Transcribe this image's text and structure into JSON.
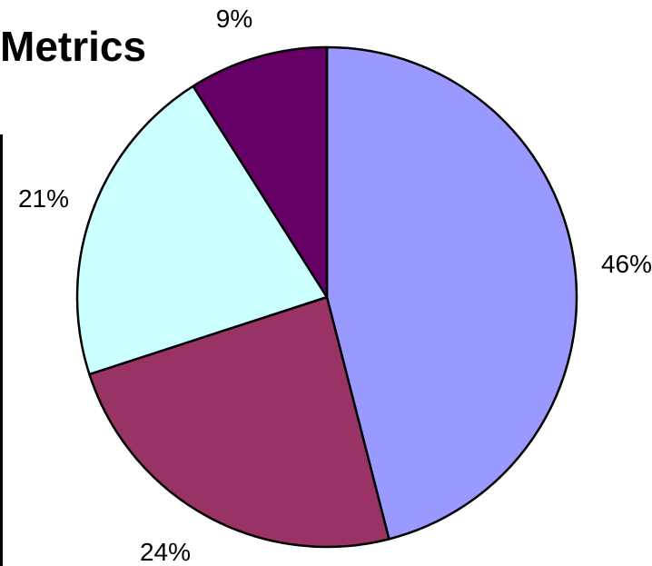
{
  "chart_data": {
    "type": "pie",
    "title": "Metrics",
    "legend": "none",
    "slices": [
      {
        "value": 46,
        "label": "46%",
        "color": "#9999ff"
      },
      {
        "value": 24,
        "label": "24%",
        "color": "#993366"
      },
      {
        "value": 21,
        "label": "21%",
        "color": "#ccffff"
      },
      {
        "value": 9,
        "label": "9%",
        "color": "#660066"
      }
    ]
  }
}
